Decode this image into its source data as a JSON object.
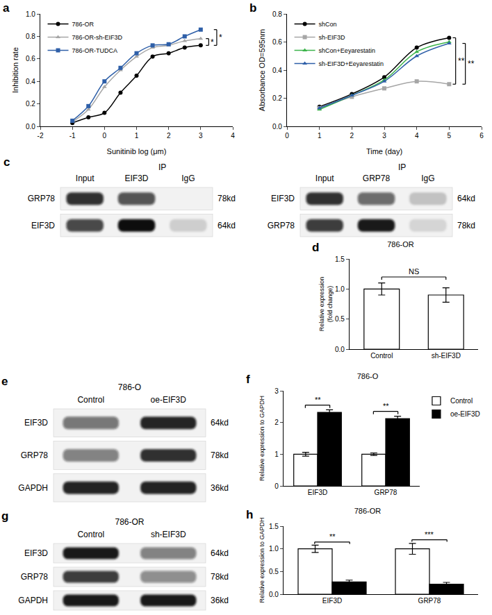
{
  "chart_data": [
    {
      "panel": "a",
      "type": "line",
      "x_label": "Sunitinib log (μm)",
      "y_label": "Inhibition rate",
      "x": [
        -1,
        -0.5,
        0,
        0.5,
        1,
        1.5,
        2,
        2.5,
        3
      ],
      "series": [
        {
          "name": "786-OR",
          "color": "#000000",
          "marker": "circle",
          "line_style": "solid",
          "values": [
            0.03,
            0.08,
            0.12,
            0.3,
            0.45,
            0.62,
            0.65,
            0.7,
            0.72
          ]
        },
        {
          "name": "786-OR-sh-EIF3D",
          "color": "#a6a6a6",
          "marker": "triangle",
          "line_style": "solid",
          "values": [
            0.04,
            0.15,
            0.35,
            0.5,
            0.62,
            0.7,
            0.72,
            0.76,
            0.78
          ]
        },
        {
          "name": "786-OR-TUDCA",
          "color": "#2e5fa8",
          "marker": "square",
          "line_style": "solid",
          "values": [
            0.05,
            0.18,
            0.4,
            0.52,
            0.65,
            0.72,
            0.73,
            0.8,
            0.86
          ]
        }
      ],
      "xlim": [
        -2,
        4
      ],
      "xticks": [
        -2,
        -1,
        0,
        1,
        2,
        3,
        4
      ],
      "ylim": [
        0,
        1
      ],
      "yticks": [
        {
          "value": 0,
          "label": "0.0"
        },
        {
          "value": 0.2,
          "label": "0.2"
        },
        {
          "value": 0.4,
          "label": "0.4"
        },
        {
          "value": 0.6,
          "label": "0.6"
        },
        {
          "value": 0.8,
          "label": "0.8"
        },
        {
          "value": 1,
          "label": "1.0"
        }
      ],
      "grid": false,
      "legend": "top-left",
      "annotations": [
        {
          "text": "*",
          "x": 3.25,
          "y0": 0.72,
          "y1": 0.78
        },
        {
          "text": "*",
          "x": 3.5,
          "y0": 0.72,
          "y1": 0.86
        }
      ]
    },
    {
      "panel": "b",
      "type": "line",
      "x_label": "Time (day)",
      "y_label": "Absorbance OD=595nm",
      "x": [
        1,
        2,
        3,
        4,
        5
      ],
      "series": [
        {
          "name": "shCon",
          "color": "#000000",
          "marker": "circle",
          "line_style": "solid",
          "values": [
            0.14,
            0.23,
            0.35,
            0.56,
            0.63
          ]
        },
        {
          "name": "sh-EIF3D",
          "color": "#a6a6a6",
          "marker": "square",
          "line_style": "solid",
          "values": [
            0.13,
            0.21,
            0.27,
            0.32,
            0.3
          ]
        },
        {
          "name": "shCon+Eeyarestatin",
          "color": "#3cb44b",
          "marker": "triangle",
          "line_style": "solid",
          "values": [
            0.12,
            0.22,
            0.33,
            0.53,
            0.6
          ]
        },
        {
          "name": "sh-EIF3D+Eeyarestatin",
          "color": "#2e5fa8",
          "marker": "triangle",
          "line_style": "solid",
          "values": [
            0.13,
            0.22,
            0.32,
            0.5,
            0.59
          ]
        }
      ],
      "xlim": [
        0,
        6
      ],
      "xticks": [
        0,
        1,
        2,
        3,
        4,
        5,
        6
      ],
      "ylim": [
        0,
        0.8
      ],
      "yticks": [
        {
          "value": 0,
          "label": "0.0"
        },
        {
          "value": 0.2,
          "label": "0.2"
        },
        {
          "value": 0.4,
          "label": "0.4"
        },
        {
          "value": 0.6,
          "label": "0.6"
        },
        {
          "value": 0.8,
          "label": "0.8"
        }
      ],
      "grid": false,
      "legend": "top-left",
      "annotations": [
        {
          "text": "**",
          "x": 5.2,
          "y0": 0.3,
          "y1": 0.63
        },
        {
          "text": "**",
          "x": 5.5,
          "y0": 0.3,
          "y1": 0.59
        }
      ]
    },
    {
      "panel": "d",
      "type": "bar",
      "title": "786-OR",
      "y_label": "Relative expression\n(fold change)",
      "categories": [
        "Control",
        "sh-EIF3D"
      ],
      "series": [
        {
          "color": "#ffffff",
          "values": [
            1.0,
            0.9
          ],
          "errors": [
            0.1,
            0.12
          ]
        }
      ],
      "ylim": [
        0,
        1.5
      ],
      "yticks": [
        {
          "value": 0,
          "label": "0.0"
        },
        {
          "value": 0.5,
          "label": "0.5"
        },
        {
          "value": 1,
          "label": "1.0"
        },
        {
          "value": 1.5,
          "label": "1.5"
        }
      ],
      "grid": false,
      "annotations": [
        {
          "text": "NS",
          "y": 1.2,
          "x0": 0,
          "x1": 1
        }
      ]
    },
    {
      "panel": "f",
      "type": "bar",
      "title": "786-O",
      "y_label": "Relative expression to GAPDH",
      "categories": [
        "EIF3D",
        "GRP78"
      ],
      "series": [
        {
          "name": "Control",
          "color": "#ffffff",
          "values": [
            1.0,
            1.0
          ],
          "errors": [
            0.06,
            0.04
          ]
        },
        {
          "name": "oe-EIF3D",
          "color": "#000000",
          "values": [
            2.32,
            2.12
          ],
          "errors": [
            0.08,
            0.08
          ]
        }
      ],
      "ylim": [
        0,
        3
      ],
      "yticks": [
        0,
        1,
        2,
        3
      ],
      "grid": false,
      "legend": "top-right",
      "annotations": [
        {
          "text": "**",
          "y": 2.55,
          "x0": -0.18,
          "x1": 0.18
        },
        {
          "text": "**",
          "y": 2.35,
          "x0": 0.82,
          "x1": 1.18
        }
      ]
    },
    {
      "panel": "h",
      "type": "bar",
      "title": "786-OR",
      "y_label": "Relative expression to GAPDH",
      "categories": [
        "EIF3D",
        "GRP78"
      ],
      "series": [
        {
          "color": "#ffffff",
          "values": [
            1.0,
            1.0
          ],
          "errors": [
            0.08,
            0.12
          ]
        },
        {
          "color": "#000000",
          "values": [
            0.27,
            0.22
          ],
          "errors": [
            0.04,
            0.04
          ]
        }
      ],
      "ylim": [
        0,
        1.5
      ],
      "yticks": [
        {
          "value": 0,
          "label": "0.0"
        },
        {
          "value": 0.5,
          "label": "0.5"
        },
        {
          "value": 1,
          "label": "1.0"
        },
        {
          "value": 1.5,
          "label": "1.5"
        }
      ],
      "grid": false,
      "annotations": [
        {
          "text": "**",
          "y": 1.15,
          "x0": -0.18,
          "x1": 0.18
        },
        {
          "text": "***",
          "y": 1.2,
          "x0": 0.82,
          "x1": 1.18
        }
      ]
    }
  ],
  "blots": [
    {
      "panel": "c",
      "columns": [
        "Input",
        "EIF3D",
        "IgG"
      ],
      "group": {
        "label": "IP",
        "columns": [
          1,
          2
        ]
      },
      "rows": [
        {
          "label": "GRP78",
          "size": "78kd",
          "bands": [
            0.85,
            0.7,
            0.0
          ]
        },
        {
          "label": "EIF3D",
          "size": "64kd",
          "bands": [
            0.75,
            1.0,
            0.15
          ]
        }
      ]
    },
    {
      "columns": [
        "Input",
        "GRP78",
        "IgG"
      ],
      "group": {
        "label": "IP",
        "columns": [
          1,
          2
        ]
      },
      "rows": [
        {
          "label": "EIF3D",
          "size": "64kd",
          "bands": [
            0.85,
            0.6,
            0.2
          ]
        },
        {
          "label": "GRP78",
          "size": "78kd",
          "bands": [
            0.8,
            0.95,
            0.12
          ]
        }
      ]
    },
    {
      "panel": "e",
      "title": "786-O",
      "columns": [
        "Control",
        "oe-EIF3D"
      ],
      "rows": [
        {
          "label": "EIF3D",
          "size": "64kd",
          "bands": [
            0.55,
            0.9
          ]
        },
        {
          "label": "GRP78",
          "size": "78kd",
          "bands": [
            0.5,
            0.85
          ]
        },
        {
          "label": "GAPDH",
          "size": "36kd",
          "bands": [
            0.9,
            0.9
          ]
        }
      ]
    },
    {
      "panel": "g",
      "title": "786-OR",
      "columns": [
        "Control",
        "sh-EIF3D"
      ],
      "rows": [
        {
          "label": "EIF3D",
          "size": "64kd",
          "bands": [
            0.95,
            0.5
          ]
        },
        {
          "label": "GRP78",
          "size": "78kd",
          "bands": [
            0.8,
            0.45
          ]
        },
        {
          "label": "GAPDH",
          "size": "36kd",
          "bands": [
            0.95,
            0.95
          ]
        }
      ]
    }
  ]
}
